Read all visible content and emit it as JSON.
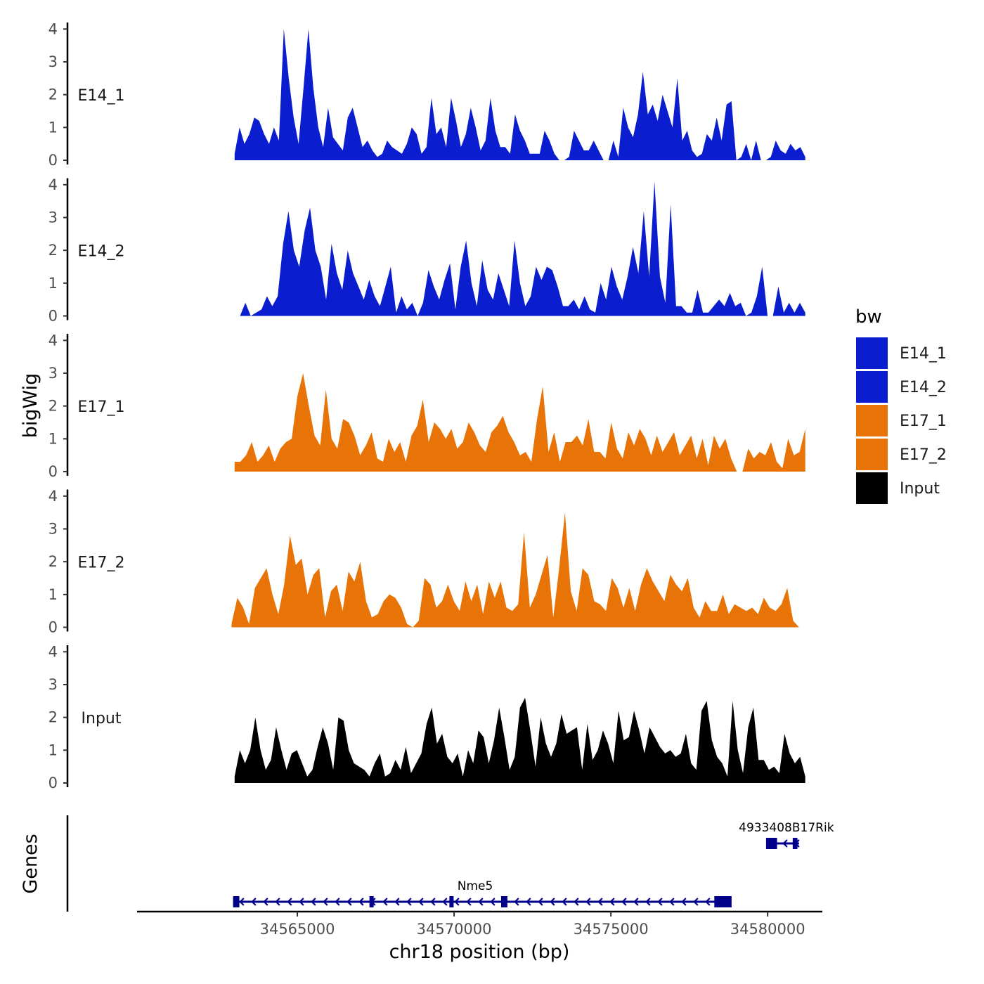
{
  "chart_data": {
    "type": "area",
    "chromosome": "chr18",
    "xlabel": "chr18 position (bp)",
    "ylabel": "bigWig",
    "genes_label": "Genes",
    "xlim": [
      34560000,
      34581700
    ],
    "x_ticks": [
      34565000,
      34570000,
      34575000,
      34580000
    ],
    "x_tick_labels": [
      "34565000",
      "34570000",
      "34575000",
      "34580000"
    ],
    "ylim": [
      0,
      4.2
    ],
    "y_ticks": [
      0,
      1,
      2,
      3,
      4
    ],
    "y_tick_labels": [
      "0",
      "1",
      "2",
      "3",
      "4"
    ],
    "legend": {
      "title": "bw",
      "entries": [
        {
          "label": "E14_1",
          "color": "#0a1ecf"
        },
        {
          "label": "E14_2",
          "color": "#0a1ecf"
        },
        {
          "label": "E17_1",
          "color": "#e87407"
        },
        {
          "label": "E17_2",
          "color": "#e87407"
        },
        {
          "label": "Input",
          "color": "#000000"
        }
      ]
    },
    "series": [
      {
        "name": "E14_1",
        "color": "#0a1ecf",
        "x_start": 34563000,
        "x_end": 34581200,
        "values": [
          0.2,
          1.0,
          0.5,
          0.8,
          1.3,
          1.2,
          0.8,
          0.5,
          1.0,
          0.6,
          4.0,
          2.5,
          1.3,
          0.5,
          2.2,
          4.0,
          2.2,
          1.0,
          0.4,
          1.6,
          0.7,
          0.5,
          0.3,
          1.3,
          1.6,
          1.0,
          0.4,
          0.6,
          0.3,
          0.1,
          0.2,
          0.6,
          0.4,
          0.3,
          0.2,
          0.5,
          1.0,
          0.8,
          0.2,
          0.4,
          1.9,
          0.8,
          1.0,
          0.4,
          1.9,
          1.2,
          0.4,
          0.8,
          1.6,
          1.0,
          0.3,
          0.6,
          1.9,
          0.9,
          0.4,
          0.4,
          0.2,
          1.4,
          0.9,
          0.6,
          0.2,
          0.2,
          0.2,
          0.9,
          0.6,
          0.2,
          0.0,
          0.0,
          0.1,
          0.9,
          0.6,
          0.3,
          0.3,
          0.6,
          0.3,
          0.0,
          0.0,
          0.6,
          0.1,
          1.6,
          1.0,
          0.7,
          1.4,
          2.7,
          1.4,
          1.7,
          1.2,
          2.0,
          1.5,
          1.0,
          2.5,
          0.6,
          0.9,
          0.3,
          0.1,
          0.2,
          0.8,
          0.6,
          1.3,
          0.6,
          1.7,
          1.8,
          0.0,
          0.1,
          0.5,
          0.0,
          0.6,
          0.0,
          0.0,
          0.1,
          0.6,
          0.3,
          0.2,
          0.5,
          0.3,
          0.4,
          0.1
        ]
      },
      {
        "name": "E14_2",
        "color": "#0a1ecf",
        "x_start": 34563000,
        "x_end": 34581200,
        "values": [
          0.0,
          0.0,
          0.4,
          0.0,
          0.1,
          0.2,
          0.6,
          0.3,
          0.6,
          2.2,
          3.2,
          2.0,
          1.5,
          2.6,
          3.3,
          2.0,
          1.5,
          0.5,
          2.2,
          1.3,
          0.8,
          2.0,
          1.3,
          0.9,
          0.5,
          1.1,
          0.6,
          0.3,
          0.9,
          1.5,
          0.1,
          0.6,
          0.2,
          0.4,
          0.0,
          0.4,
          1.4,
          0.9,
          0.5,
          1.1,
          1.6,
          0.2,
          1.5,
          2.3,
          1.0,
          0.3,
          1.7,
          0.8,
          0.5,
          1.3,
          0.8,
          0.3,
          2.3,
          1.0,
          0.3,
          0.6,
          1.5,
          1.1,
          1.5,
          1.4,
          0.9,
          0.3,
          0.3,
          0.5,
          0.2,
          0.6,
          0.2,
          0.1,
          1.0,
          0.5,
          1.5,
          0.9,
          0.5,
          1.2,
          2.1,
          1.3,
          3.2,
          1.2,
          4.1,
          1.2,
          0.4,
          3.4,
          0.3,
          0.3,
          0.1,
          0.1,
          0.8,
          0.1,
          0.1,
          0.3,
          0.5,
          0.3,
          0.7,
          0.3,
          0.4,
          0.0,
          0.1,
          0.6,
          1.5,
          0.0,
          0.0,
          0.9,
          0.1,
          0.4,
          0.1,
          0.4,
          0.1
        ]
      },
      {
        "name": "E17_1",
        "color": "#e87407",
        "x_start": 34563000,
        "x_end": 34581200,
        "values": [
          0.3,
          0.3,
          0.5,
          0.9,
          0.3,
          0.5,
          0.8,
          0.3,
          0.7,
          0.9,
          1.0,
          2.3,
          3.0,
          2.0,
          1.1,
          0.8,
          2.5,
          1.0,
          0.7,
          1.6,
          1.5,
          1.1,
          0.5,
          0.8,
          1.2,
          0.4,
          0.3,
          1.0,
          0.6,
          0.9,
          0.3,
          1.1,
          1.4,
          2.2,
          0.9,
          1.5,
          1.3,
          1.0,
          1.3,
          0.7,
          0.9,
          1.5,
          1.2,
          0.8,
          0.6,
          1.2,
          1.4,
          1.7,
          1.2,
          0.9,
          0.5,
          0.6,
          0.3,
          1.6,
          2.6,
          0.6,
          1.2,
          0.3,
          0.9,
          0.9,
          1.1,
          0.8,
          1.6,
          0.6,
          0.6,
          0.4,
          1.5,
          0.7,
          0.4,
          1.2,
          0.8,
          1.3,
          1.0,
          0.5,
          1.1,
          0.6,
          0.9,
          1.2,
          0.5,
          0.8,
          1.1,
          0.4,
          1.0,
          0.2,
          1.1,
          0.7,
          1.0,
          0.4,
          0.0,
          0.0,
          0.7,
          0.4,
          0.6,
          0.5,
          0.9,
          0.3,
          0.1,
          1.0,
          0.5,
          0.6,
          1.3
        ]
      },
      {
        "name": "E17_2",
        "color": "#e87407",
        "x_start": 34562900,
        "x_end": 34581000,
        "values": [
          0.1,
          0.9,
          0.6,
          0.1,
          1.2,
          1.5,
          1.8,
          1.0,
          0.4,
          1.3,
          2.8,
          1.9,
          2.1,
          1.0,
          1.6,
          1.8,
          0.3,
          1.1,
          1.3,
          0.5,
          1.7,
          1.4,
          2.0,
          0.8,
          0.3,
          0.4,
          0.8,
          1.0,
          0.9,
          0.6,
          0.1,
          0.0,
          0.2,
          1.5,
          1.3,
          0.6,
          0.8,
          1.3,
          0.8,
          0.5,
          1.4,
          0.8,
          1.3,
          0.4,
          1.4,
          0.9,
          1.4,
          0.6,
          0.5,
          0.7,
          2.9,
          0.6,
          1.0,
          1.6,
          2.2,
          0.3,
          1.8,
          3.5,
          1.1,
          0.5,
          1.8,
          1.6,
          0.8,
          0.7,
          0.5,
          1.5,
          1.2,
          0.6,
          1.2,
          0.5,
          1.3,
          1.8,
          1.4,
          1.1,
          0.8,
          1.6,
          1.3,
          1.1,
          1.5,
          0.6,
          0.3,
          0.8,
          0.5,
          0.5,
          1.0,
          0.4,
          0.7,
          0.6,
          0.5,
          0.6,
          0.4,
          0.9,
          0.6,
          0.5,
          0.7,
          1.2,
          0.2,
          0.0
        ]
      },
      {
        "name": "Input",
        "color": "#000000",
        "x_start": 34563000,
        "x_end": 34581200,
        "values": [
          0.2,
          1.0,
          0.6,
          1.0,
          2.0,
          1.0,
          0.4,
          0.7,
          1.7,
          1.0,
          0.4,
          0.9,
          1.0,
          0.6,
          0.2,
          0.4,
          1.1,
          1.7,
          1.2,
          0.4,
          2.0,
          1.9,
          1.0,
          0.6,
          0.5,
          0.4,
          0.2,
          0.6,
          0.9,
          0.2,
          0.3,
          0.7,
          0.4,
          1.1,
          0.3,
          0.6,
          0.9,
          1.8,
          2.3,
          1.2,
          1.5,
          0.8,
          0.6,
          0.9,
          0.2,
          1.0,
          0.6,
          1.6,
          1.4,
          0.6,
          1.3,
          2.3,
          1.4,
          0.4,
          0.8,
          2.3,
          2.6,
          1.6,
          0.5,
          2.0,
          1.2,
          0.8,
          1.2,
          2.1,
          1.5,
          1.6,
          1.7,
          0.4,
          1.8,
          0.7,
          1.0,
          1.6,
          1.2,
          0.6,
          2.2,
          1.3,
          1.4,
          2.2,
          1.6,
          0.9,
          1.7,
          1.4,
          1.1,
          0.9,
          1.0,
          0.8,
          0.9,
          1.5,
          0.6,
          0.4,
          2.2,
          2.5,
          1.3,
          0.8,
          0.6,
          0.2,
          2.5,
          1.0,
          0.3,
          1.7,
          2.3,
          0.7,
          0.7,
          0.4,
          0.5,
          0.3,
          1.5,
          0.9,
          0.6,
          0.8,
          0.2
        ]
      }
    ],
    "genes": [
      {
        "name": "Nme5",
        "strand": "-",
        "start": 34563000,
        "end": 34578800,
        "exons": [
          [
            34562950,
            34563150
          ],
          [
            34567300,
            34567420
          ],
          [
            34569850,
            34569960
          ],
          [
            34571500,
            34571700
          ],
          [
            34578300,
            34578850
          ]
        ]
      },
      {
        "name": "4933408B17Rik",
        "strand": "-",
        "start": 34579950,
        "end": 34581000,
        "exons": [
          [
            34579950,
            34580300
          ],
          [
            34580800,
            34580950
          ]
        ]
      }
    ]
  }
}
